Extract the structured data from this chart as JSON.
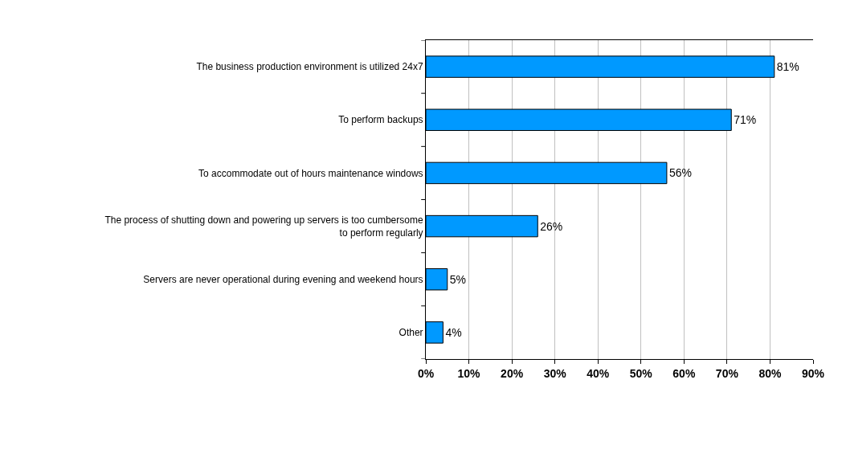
{
  "chart_data": {
    "type": "bar",
    "orientation": "horizontal",
    "categories": [
      "The business production environment is utilized 24x7",
      "To perform backups",
      "To accommodate out of hours maintenance windows",
      "The process of shutting down and powering up servers is too cumbersome to perform regularly",
      "Servers are never operational during evening and weekend hours",
      "Other"
    ],
    "values": [
      81,
      71,
      56,
      26,
      5,
      4
    ],
    "value_labels": [
      "81%",
      "71%",
      "56%",
      "26%",
      "5%",
      "4%"
    ],
    "color": "#0099ff",
    "xlim": [
      0,
      90
    ],
    "xticks": [
      {
        "value": 0,
        "label": "0%"
      },
      {
        "value": 10,
        "label": "10%"
      },
      {
        "value": 20,
        "label": "20%"
      },
      {
        "value": 30,
        "label": "30%"
      },
      {
        "value": 40,
        "label": "40%"
      },
      {
        "value": 50,
        "label": "50%"
      },
      {
        "value": 60,
        "label": "60%"
      },
      {
        "value": 70,
        "label": "70%"
      },
      {
        "value": 80,
        "label": "80%"
      },
      {
        "value": 90,
        "label": "90%"
      }
    ],
    "grid": "x"
  }
}
